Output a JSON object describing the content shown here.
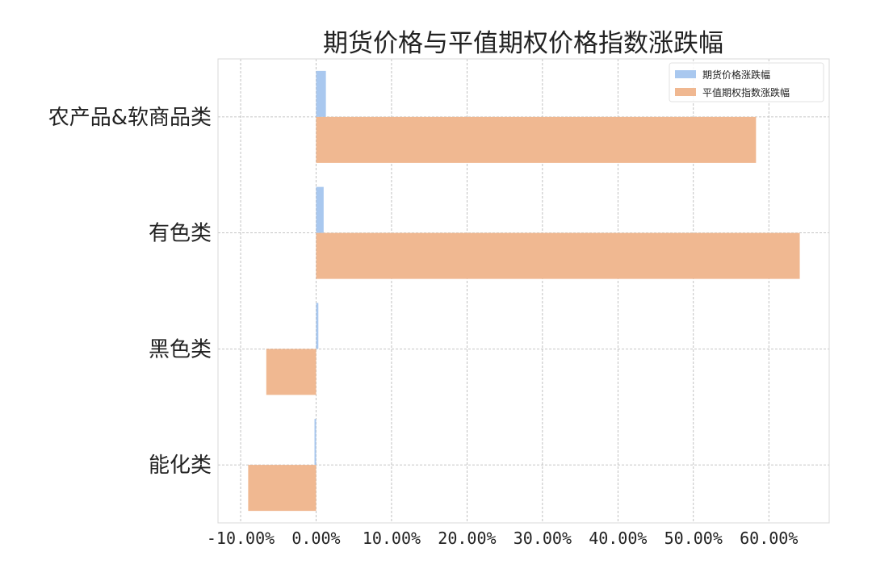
{
  "chart_data": {
    "type": "bar",
    "orientation": "horizontal",
    "title": "期货价格与平值期权价格指数涨跌幅",
    "xlabel": "",
    "ylabel": "",
    "categories": [
      "能化类",
      "黑色类",
      "有色类",
      "农产品&软商品类"
    ],
    "series": [
      {
        "name": "期货价格涨跌幅",
        "color": "#a9c8ef",
        "values": [
          -0.001,
          0.003,
          0.01,
          0.013
        ]
      },
      {
        "name": "平值期权指数涨跌幅",
        "color": "#f0b891",
        "values": [
          -0.09,
          -0.066,
          0.641,
          0.583
        ]
      }
    ],
    "xlim": [
      -0.13,
      0.68
    ],
    "xticks": [
      -0.1,
      0.0,
      0.1,
      0.2,
      0.3,
      0.4,
      0.5,
      0.6
    ],
    "xtick_labels": [
      "-10.00%",
      "0.00%",
      "10.00%",
      "20.00%",
      "30.00%",
      "40.00%",
      "50.00%",
      "60.00%"
    ],
    "grid": true,
    "legend_position": "top-right"
  }
}
